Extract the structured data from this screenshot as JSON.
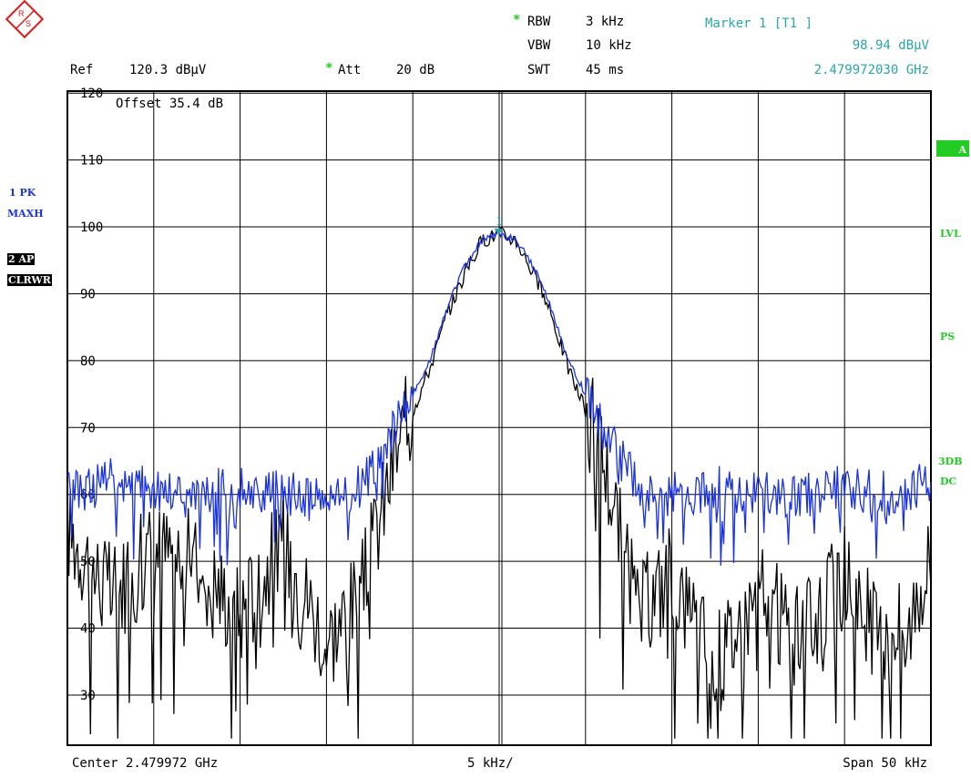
{
  "header": {
    "rbw_label": "RBW",
    "rbw_value": "3 kHz",
    "vbw_label": "VBW",
    "vbw_value": "10 kHz",
    "swt_label": "SWT",
    "swt_value": "45 ms",
    "ref_label": "Ref",
    "ref_value": "120.3 dBµV",
    "att_label": "Att",
    "att_value": "20 dB",
    "offset_text": "Offset 35.4 dB",
    "marker_title": "Marker 1 [T1 ]",
    "marker_level": "98.94 dBµV",
    "marker_freq": "2.479972030 GHz",
    "star": "*"
  },
  "left_labels": {
    "trace1_line1": "1 PK",
    "trace1_line2": "MAXH",
    "trace2_line1": "2 AP",
    "trace2_line2": "CLRWR"
  },
  "right_labels": {
    "a": "A",
    "lvl": "LVL",
    "ps": "PS",
    "db3": "3DB",
    "dc": "DC"
  },
  "footer": {
    "center": "Center 2.479972 GHz",
    "div": "5 kHz/",
    "span": "Span 50 kHz"
  },
  "marker_label": "1",
  "colors": {
    "trace1": "#1a32e0",
    "trace2": "#000000",
    "marker": "#2aa6a6",
    "green": "#22cc22"
  },
  "chart_data": {
    "type": "line",
    "xlabel": "Center 2.479972 GHz",
    "x_unit": "kHz offset from center",
    "xlim": [
      -25,
      25
    ],
    "ylim": [
      22.5,
      120.3
    ],
    "yticks": [
      120,
      110,
      100,
      90,
      80,
      70,
      60,
      50,
      40,
      30
    ],
    "grid": true,
    "series": [
      {
        "name": "1 PK MAXH",
        "x": [
          -25,
          -22.5,
          -20,
          -17.5,
          -15,
          -12.5,
          -10,
          -8,
          -6,
          -4,
          -3,
          -2,
          -1,
          0,
          1,
          2,
          3,
          4,
          6,
          8,
          10,
          12.5,
          15,
          17.5,
          20,
          22.5,
          25
        ],
        "y": [
          60,
          62,
          61,
          60,
          61,
          60,
          59,
          61,
          70,
          80,
          88,
          94,
          98,
          99,
          98,
          94,
          88,
          80,
          70,
          61,
          60,
          61,
          60,
          60,
          61,
          60,
          62
        ]
      },
      {
        "name": "2 AP CLRWR",
        "x": [
          -25,
          -22.5,
          -20,
          -17.5,
          -15,
          -12.5,
          -10,
          -8,
          -6,
          -4,
          -3,
          -2,
          -1,
          0,
          1,
          2,
          3,
          4,
          6,
          8,
          10,
          12.5,
          15,
          17.5,
          20,
          22.5,
          25
        ],
        "y": [
          55,
          45,
          52,
          50,
          42,
          53,
          38,
          45,
          66,
          79,
          87,
          93,
          98,
          99,
          98,
          93,
          87,
          79,
          66,
          42,
          48,
          35,
          45,
          38,
          48,
          36,
          50
        ]
      }
    ],
    "marker": {
      "label": "1",
      "x": -0.028,
      "y": 98.94
    }
  }
}
